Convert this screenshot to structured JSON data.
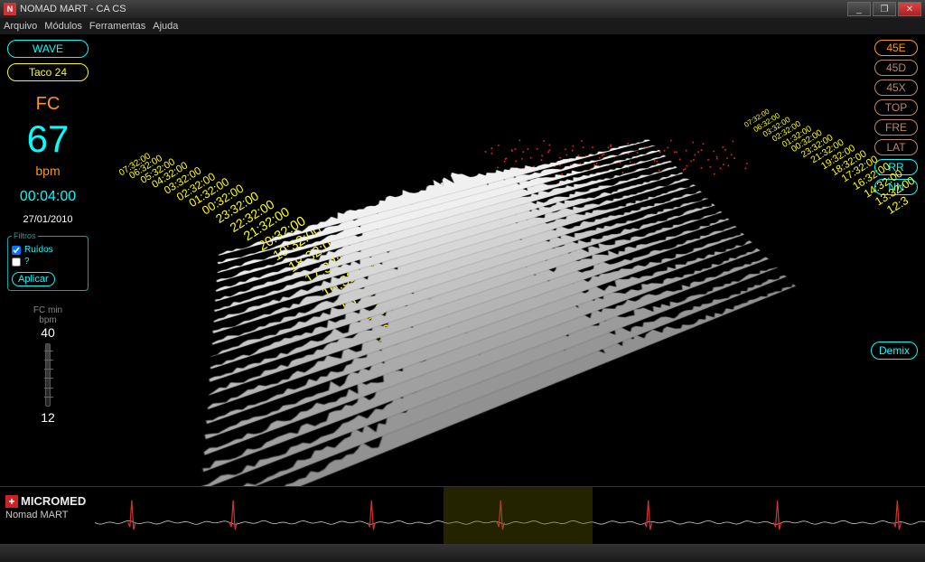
{
  "window": {
    "title": "NOMAD MART - CA CS",
    "icon_letter": "N"
  },
  "menu": {
    "items": [
      "Arquivo",
      "Módulos",
      "Ferramentas",
      "Ajuda"
    ]
  },
  "left": {
    "wave_btn": "WAVE",
    "taco_btn": "Taco 24",
    "fc_label": "FC",
    "fc_value": "67",
    "bpm_label": "bpm",
    "timer": "00:04:00",
    "date": "27/01/2010",
    "filtros_title": "Filtros",
    "ruidos_label": "Ruídos",
    "question_label": "?",
    "aplicar_label": "Aplicar",
    "fc_min_label": "FC min",
    "fc_min_unit": "bpm",
    "fc_min_top": "40",
    "fc_min_bottom": "12"
  },
  "right": {
    "btns": [
      "45E",
      "45D",
      "45X",
      "TOP",
      "FRE",
      "LAT",
      "RR",
      "NN"
    ],
    "btn_colors": [
      "orange",
      "orange-dim",
      "orange-dim",
      "orange-dim",
      "orange-dim",
      "orange-dim",
      "cyan",
      "cyan"
    ],
    "demix": "Demix"
  },
  "viz": {
    "left_times": [
      "07:32:00",
      "06:32:00",
      "05:32:00",
      "04:32:00",
      "03:32:00",
      "02:32:00",
      "01:32:00",
      "00:32:00",
      "23:32:00",
      "22:32:00",
      "21:32:00",
      "20:32:00",
      "19:32:00",
      "18:32:00",
      "17:32:00",
      "16:32:00",
      "15:32:00",
      "14:32:00",
      "13:32:00"
    ],
    "right_times": [
      "07:32:00",
      "06:32:00",
      "03:32:00",
      "02:32:00",
      "01:32:00",
      "00:32:00",
      "23:32:00",
      "21:32:00",
      "19:32:00",
      "18:32:00",
      "17:32:00",
      "16:32:00",
      "14:32:00",
      "13:32:00",
      "12:3"
    ],
    "ridge_count": 22,
    "ridge_base_color": "#e8e8e8",
    "ridge_shadow_color": "#888",
    "red_dot_color": "#cc2222",
    "red_dot_count": 120
  },
  "ecg": {
    "brand": "MICROMED",
    "subtitle": "Nomad MART",
    "spike_color": "#cc3333",
    "trace_color": "#cccccc",
    "highlight_color": "rgba(100,100,0,0.35)"
  }
}
